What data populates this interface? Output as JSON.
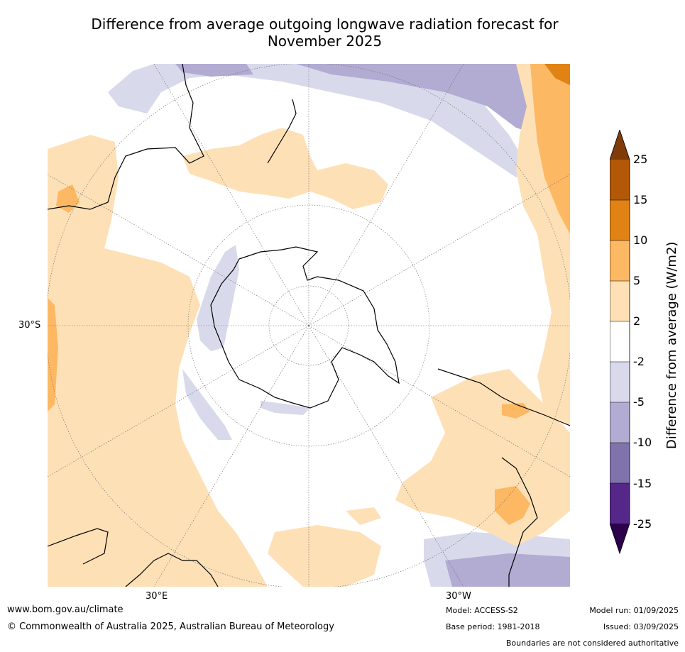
{
  "title_line1": "Difference from average outgoing longwave radiation forecast for",
  "title_line2": "November 2025",
  "lat_label": "30°S",
  "lon_label_east": "30°E",
  "lon_label_west": "30°W",
  "colorbar": {
    "label": "Difference from average (W/m2)",
    "ticks": [
      "25",
      "15",
      "10",
      "5",
      "2",
      "-2",
      "-5",
      "-10",
      "-15",
      "-25"
    ],
    "colors": {
      "over": "#7f3b08",
      "c15_25": "#b35806",
      "c10_15": "#e08214",
      "c5_10": "#fdb863",
      "c2_5": "#fee0b6",
      "neutral": "#ffffff",
      "m2_5": "#d8daeb",
      "m5_10": "#b2abd2",
      "m10_15": "#8073ac",
      "m15_25": "#542788",
      "under": "#2d004b"
    }
  },
  "footer": {
    "url": "www.bom.gov.au/climate",
    "copyright": "© Commonwealth of Australia 2025, Australian Bureau of Meteorology",
    "model": "Model: ACCESS-S2",
    "base_period": "Base period: 1981-2018",
    "model_run": "Model run: 01/09/2025",
    "issued": "Issued: 03/09/2025",
    "disclaimer": "Boundaries are not considered authoritative"
  }
}
